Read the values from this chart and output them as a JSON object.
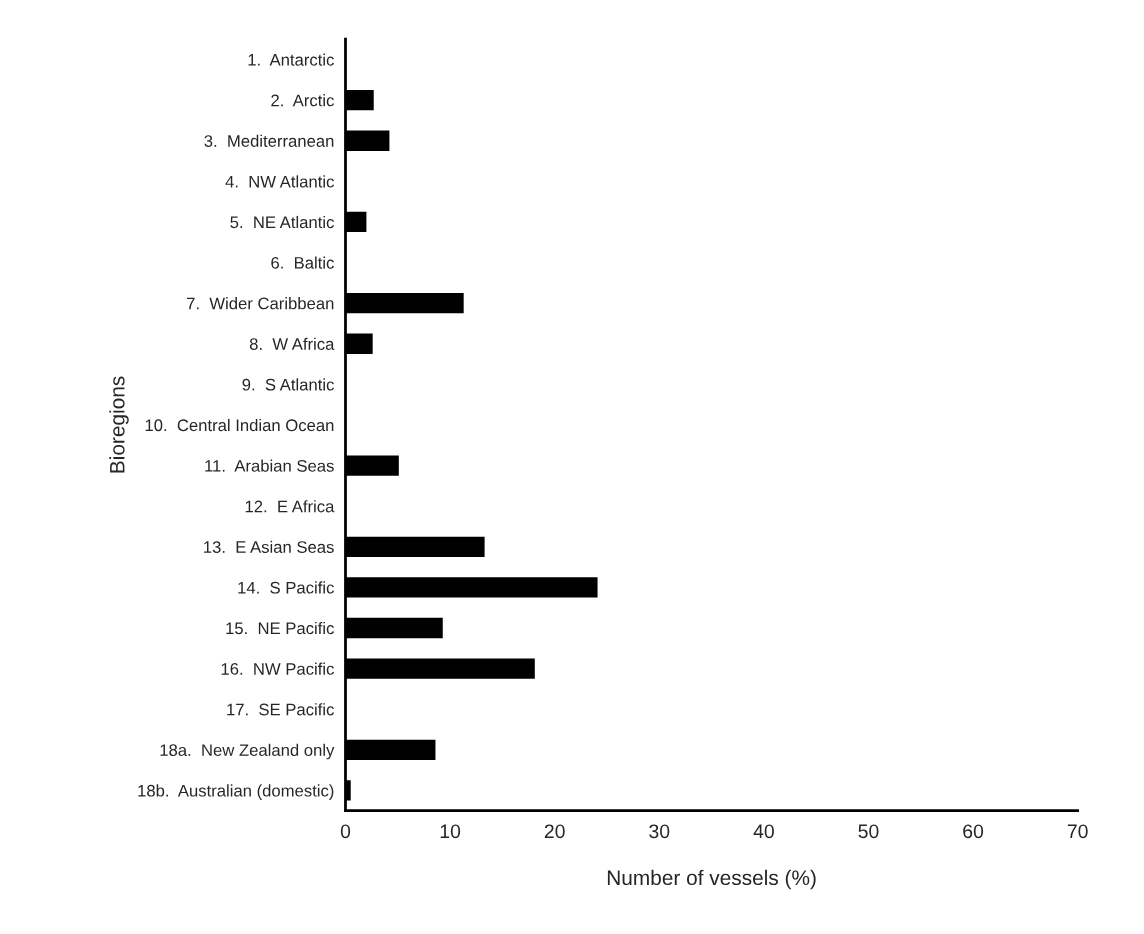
{
  "chart_data": {
    "type": "bar",
    "orientation": "horizontal",
    "xlabel": "Number of vessels (%)",
    "ylabel": "Bioregions",
    "categories": [
      "1.  Antarctic",
      "2.  Arctic",
      "3.  Mediterranean",
      "4.  NW Atlantic",
      "5.  NE Atlantic",
      "6.  Baltic",
      "7.  Wider Caribbean",
      "8.  W Africa",
      "9.  S Atlantic",
      "10.  Central Indian Ocean",
      "11.  Arabian Seas",
      "12.  E Africa",
      "13.  E Asian Seas",
      "14.  S Pacific",
      "15.  NE Pacific",
      "16.  NW Pacific",
      "17.  SE Pacific",
      "18a.  New Zealand only",
      "18b.  Australian (domestic)"
    ],
    "values": [
      0,
      2.7,
      4.2,
      0,
      2.0,
      0,
      11.3,
      2.6,
      0,
      0,
      5.1,
      0,
      13.3,
      24.1,
      9.3,
      18.1,
      0,
      8.6,
      0.5
    ],
    "color": "#000000",
    "xlim": [
      0,
      70
    ],
    "xticks": [
      0,
      10,
      20,
      30,
      40,
      50,
      60,
      70
    ],
    "grid": false
  }
}
